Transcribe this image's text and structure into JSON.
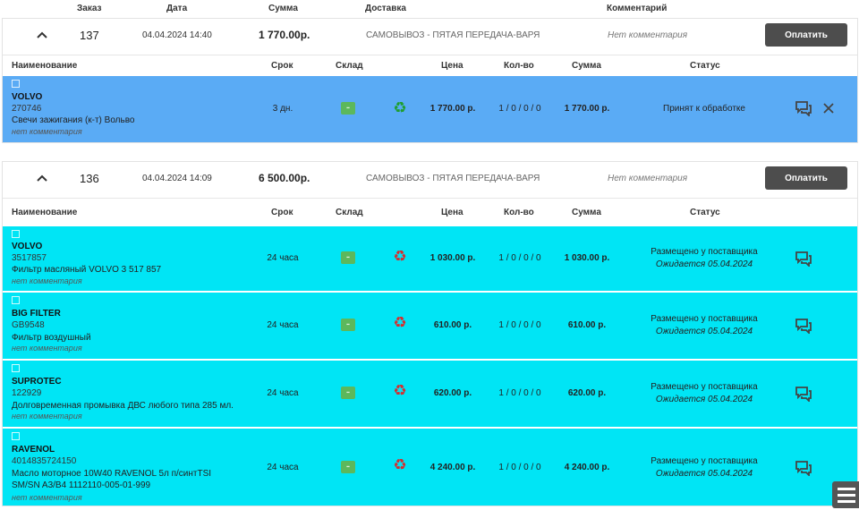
{
  "columns": {
    "order": "Заказ",
    "date": "Дата",
    "sum": "Сумма",
    "delivery": "Доставка",
    "comment": "Комментарий"
  },
  "item_columns": {
    "name": "Наименование",
    "term": "Срок",
    "stock": "Склад",
    "price": "Цена",
    "qty": "Кол-во",
    "sum": "Сумма",
    "status": "Статус"
  },
  "pay_label": "Оплатить",
  "icons": {
    "collapse": "chevron-up-icon",
    "stock": "warehouse-badge-icon",
    "recycle": "recycle-icon",
    "message": "message-icon",
    "close": "close-icon",
    "menu": "hamburger-menu-icon"
  },
  "colors": {
    "accepted_row": "#5aabf5",
    "placed_row": "#00e5f5",
    "button": "#4d4d4d",
    "stock_badge": "#5cb85c"
  },
  "orders": [
    {
      "number": "137",
      "date": "04.04.2024 14:40",
      "sum": "1 770.00р.",
      "delivery": "САМОВЫВОЗ - ПЯТАЯ ПЕРЕДАЧА-ВАРЯ",
      "comment": "Нет комментария",
      "items": [
        {
          "brand": "VOLVO",
          "article": "270746",
          "name": "Свечи зажигания (к-т) Вольво",
          "comment": "нет комментария",
          "term": "3 дн.",
          "price": "1 770.00 р.",
          "qty": "1 / 0 / 0 / 0",
          "sum": "1 770.00 р.",
          "status": "Принят к обработке",
          "expected": ""
        }
      ]
    },
    {
      "number": "136",
      "date": "04.04.2024 14:09",
      "sum": "6 500.00р.",
      "delivery": "САМОВЫВОЗ - ПЯТАЯ ПЕРЕДАЧА-ВАРЯ",
      "comment": "Нет комментария",
      "items": [
        {
          "brand": "VOLVO",
          "article": "3517857",
          "name": "Фильтр масляный VOLVO 3 517 857",
          "comment": "нет комментария",
          "term": "24 часа",
          "price": "1 030.00 р.",
          "qty": "1 / 0 / 0 / 0",
          "sum": "1 030.00 р.",
          "status": "Размещено у поставщика",
          "expected": "Ожидается 05.04.2024"
        },
        {
          "brand": "BIG FILTER",
          "article": "GB9548",
          "name": "Фильтр воздушный",
          "comment": "нет комментария",
          "term": "24 часа",
          "price": "610.00 р.",
          "qty": "1 / 0 / 0 / 0",
          "sum": "610.00 р.",
          "status": "Размещено у поставщика",
          "expected": "Ожидается 05.04.2024"
        },
        {
          "brand": "SUPROTEC",
          "article": "122929",
          "name": "Долговременная промывка ДВС любого типа 285 мл.",
          "comment": "нет комментария",
          "term": "24 часа",
          "price": "620.00 р.",
          "qty": "1 / 0 / 0 / 0",
          "sum": "620.00 р.",
          "status": "Размещено у поставщика",
          "expected": "Ожидается 05.04.2024"
        },
        {
          "brand": "RAVENOL",
          "article": "4014835724150",
          "name": "Масло моторное 10W40 RAVENOL 5л п/синтTSI SM/SN A3/B4 1112110-005-01-999",
          "comment": "нет комментария",
          "term": "24 часа",
          "price": "4 240.00 р.",
          "qty": "1 / 0 / 0 / 0",
          "sum": "4 240.00 р.",
          "status": "Размещено у поставщика",
          "expected": "Ожидается 05.04.2024"
        }
      ]
    }
  ]
}
